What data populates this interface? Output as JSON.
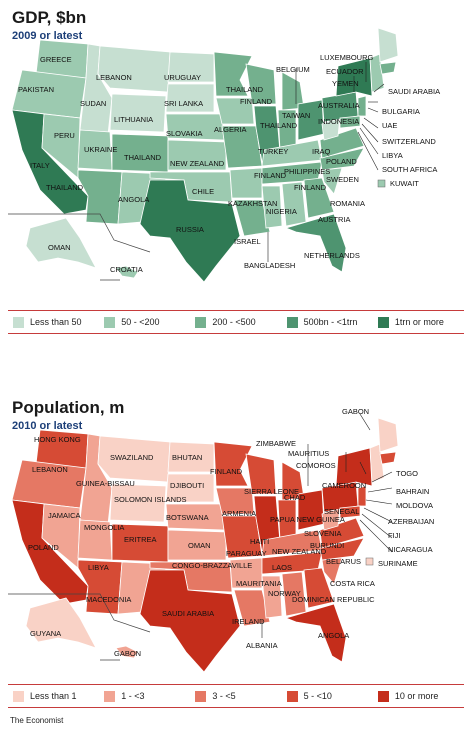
{
  "gdp": {
    "title": "GDP, $bn",
    "subtitle": "2009 or latest",
    "colors": {
      "c1": "#c6dfd1",
      "c2": "#9ccab0",
      "c3": "#74b08e",
      "c4": "#4e9470",
      "c5": "#2f7a54"
    },
    "legend": [
      {
        "label": "Less than 50",
        "color": "#c6dfd1"
      },
      {
        "label": "50 - <200",
        "color": "#9ccab0"
      },
      {
        "label": "200 - <500",
        "color": "#74b08e"
      },
      {
        "label": "500bn - <1trn",
        "color": "#4e9470"
      },
      {
        "label": "1trn or more",
        "color": "#2f7a54"
      }
    ],
    "labels": {
      "greece": "GREECE",
      "lebanon": "LEBANON",
      "uruguay": "URUGUAY",
      "pakistan": "PAKISTAN",
      "sudan": "SUDAN",
      "srilanka": "SRI LANKA",
      "lithuania": "LITHUANIA",
      "peru": "PERU",
      "ukraine": "UKRAINE",
      "slovakia": "SLOVAKIA",
      "thailand1": "THAILAND",
      "thailand2": "THAILAND",
      "thailand3": "THAILAND",
      "thailand4": "THAILAND",
      "finland1": "FINLAND",
      "finland2": "FINLAND",
      "finland3": "FINLAND",
      "newzealand": "NEW ZEALAND",
      "italy": "ITALY",
      "algeria": "ALGERIA",
      "turkey": "TURKEY",
      "taiwan": "TAIWAN",
      "angola": "ANGOLA",
      "chile": "CHILE",
      "kazakhstan": "KAZAKHSTAN",
      "russia": "RUSSIA",
      "oman": "OMAN",
      "croatia": "CROATIA",
      "israel": "ISRAEL",
      "nigeria": "NIGERIA",
      "philippines": "PHILIPPINES",
      "iraq": "IRAQ",
      "poland": "POLAND",
      "sweden": "SWEDEN",
      "austria": "AUSTRIA",
      "belgium": "BELGIUM",
      "luxembourg": "LUXEMBOURG",
      "ecuador": "ECUADOR",
      "yemen": "YEMEN",
      "australia": "AUSTRALIA",
      "indonesia": "INDONESIA",
      "saudiarabia": "SAUDI ARABIA",
      "bulgaria": "BULGARIA",
      "uae": "UAE",
      "switzerland": "SWITZERLAND",
      "libya": "LIBYA",
      "southafrica": "SOUTH AFRICA",
      "kuwait": "KUWAIT",
      "romania": "ROMANIA",
      "bangladesh": "BANGLADESH",
      "netherlands": "NETHERLANDS"
    }
  },
  "population": {
    "title": "Population, m",
    "subtitle": "2010 or latest",
    "colors": {
      "c1": "#f9d2c6",
      "c2": "#f1a493",
      "c3": "#e57864",
      "c4": "#d64b35",
      "c5": "#c42d1b"
    },
    "legend": [
      {
        "label": "Less than 1",
        "color": "#f9d2c6"
      },
      {
        "label": "1 - <3",
        "color": "#f1a493"
      },
      {
        "label": "3 - <5",
        "color": "#e57864"
      },
      {
        "label": "5 - <10",
        "color": "#d64b35"
      },
      {
        "label": "10 or more",
        "color": "#c42d1b"
      }
    ],
    "labels": {
      "hongkong": "HONG KONG",
      "swaziland": "SWAZILAND",
      "bhutan": "BHUTAN",
      "lebanon": "LEBANON",
      "guineabissau": "GUINEA-BISSAU",
      "djibouti": "DJIBOUTI",
      "solomon": "SOLOMON ISLANDS",
      "jamaica": "JAMAICA",
      "mongolia": "MONGOLIA",
      "botswana": "BOTSWANA",
      "eritrea": "ERITREA",
      "oman": "OMAN",
      "poland": "POLAND",
      "libya": "LIBYA",
      "macedonia": "MACEDONIA",
      "congo": "CONGO-BRAZZAVILLE",
      "saudiarabia": "SAUDI ARABIA",
      "mauritania": "MAURITANIA",
      "ireland": "IRELAND",
      "finland": "FINLAND",
      "armenia": "ARMENIA",
      "sierraleone": "SIERRA LEONE",
      "chad": "CHAD",
      "papua": "PAPUA NEW GUINEA",
      "haiti": "HAITI",
      "paraguay": "PARAGUAY",
      "newzealand": "NEW ZEALAND",
      "laos": "LAOS",
      "norway": "NORWAY",
      "albania": "ALBANIA",
      "angola": "ANGOLA",
      "guyana": "GUYANA",
      "gabon2": "GABON",
      "zimbabwe": "ZIMBABWE",
      "mauritius": "MAURITIUS",
      "comoros": "COMOROS",
      "gabon": "GABON",
      "togo": "TOGO",
      "cameroon": "CAMEROON",
      "bahrain": "BAHRAIN",
      "moldova": "MOLDOVA",
      "senegal": "SENEGAL",
      "azerbaijan": "AZERBAIJAN",
      "slovenia": "SLOVENIA",
      "fiji": "FIJI",
      "burundi": "BURUNDI",
      "nicaragua": "NICARAGUA",
      "suriname": "SURINAME",
      "belarus": "BELARUS",
      "costarica": "COSTA RICA",
      "dominican": "DOMINICAN REPUBLIC"
    }
  },
  "source": "The Economist"
}
